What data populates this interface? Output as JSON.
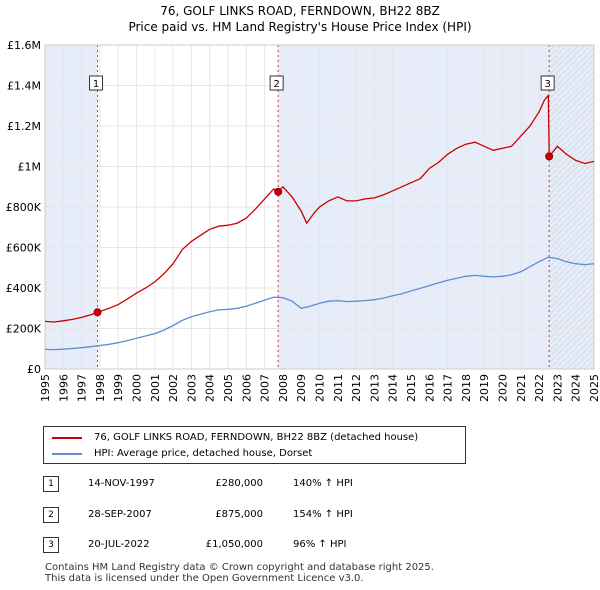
{
  "chart_data": {
    "type": "line",
    "title": "76, GOLF LINKS ROAD, FERNDOWN, BH22 8BZ",
    "subtitle": "Price paid vs. HM Land Registry's House Price Index (HPI)",
    "xlim": [
      1995,
      2025
    ],
    "ylim": [
      0,
      1600000
    ],
    "y_ticks": [
      0,
      200000,
      400000,
      600000,
      800000,
      1000000,
      1200000,
      1400000,
      1600000
    ],
    "y_tick_labels": [
      "£0",
      "£200K",
      "£400K",
      "£600K",
      "£800K",
      "£1M",
      "£1.2M",
      "£1.4M",
      "£1.6M"
    ],
    "x_ticks": [
      1995,
      1996,
      1997,
      1998,
      1999,
      2000,
      2001,
      2002,
      2003,
      2004,
      2005,
      2006,
      2007,
      2008,
      2009,
      2010,
      2011,
      2012,
      2013,
      2014,
      2015,
      2016,
      2017,
      2018,
      2019,
      2020,
      2021,
      2022,
      2023,
      2024,
      2025
    ],
    "x_tick_labels": [
      "1995",
      "1996",
      "1997",
      "1998",
      "1999",
      "2000",
      "2001",
      "2002",
      "2003",
      "2004",
      "2005",
      "2006",
      "2007",
      "2008",
      "2009",
      "2010",
      "2011",
      "2012",
      "2013",
      "2014",
      "2015",
      "2016",
      "2017",
      "2018",
      "2019",
      "2020",
      "2021",
      "2022",
      "2023",
      "2024",
      "2025"
    ],
    "grid": true,
    "series": [
      {
        "name": "76, GOLF LINKS ROAD, FERNDOWN, BH22 8BZ (detached house)",
        "color": "#cc0000",
        "x": [
          1995.0,
          1995.5,
          1996.0,
          1996.5,
          1997.0,
          1997.5,
          1997.87,
          1998.5,
          1999.0,
          1999.5,
          2000.0,
          2000.5,
          2001.0,
          2001.5,
          2002.0,
          2002.5,
          2003.0,
          2003.5,
          2004.0,
          2004.5,
          2005.0,
          2005.5,
          2006.0,
          2006.5,
          2007.0,
          2007.5,
          2007.74,
          2008.0,
          2008.5,
          2009.0,
          2009.3,
          2009.7,
          2010.0,
          2010.5,
          2011.0,
          2011.5,
          2012.0,
          2012.5,
          2013.0,
          2013.5,
          2014.0,
          2014.5,
          2015.0,
          2015.5,
          2016.0,
          2016.5,
          2017.0,
          2017.5,
          2018.0,
          2018.5,
          2019.0,
          2019.5,
          2020.0,
          2020.5,
          2021.0,
          2021.5,
          2022.0,
          2022.3,
          2022.5,
          2022.55,
          2023.0,
          2023.5,
          2024.0,
          2024.5,
          2025.0
        ],
        "values": [
          235000,
          232000,
          238000,
          245000,
          255000,
          268000,
          280000,
          300000,
          318000,
          345000,
          375000,
          400000,
          430000,
          470000,
          520000,
          590000,
          630000,
          660000,
          690000,
          705000,
          710000,
          720000,
          745000,
          790000,
          840000,
          890000,
          875000,
          900000,
          850000,
          780000,
          720000,
          770000,
          800000,
          830000,
          850000,
          830000,
          830000,
          840000,
          845000,
          860000,
          880000,
          900000,
          920000,
          940000,
          990000,
          1020000,
          1060000,
          1090000,
          1110000,
          1120000,
          1100000,
          1080000,
          1090000,
          1100000,
          1150000,
          1200000,
          1270000,
          1330000,
          1350000,
          1050000,
          1100000,
          1060000,
          1030000,
          1015000,
          1025000
        ]
      },
      {
        "name": "HPI: Average price, detached house, Dorset",
        "color": "#5b8fd1",
        "x": [
          1995.0,
          1995.5,
          1996.0,
          1996.5,
          1997.0,
          1997.5,
          1998.0,
          1998.5,
          1999.0,
          1999.5,
          2000.0,
          2000.5,
          2001.0,
          2001.5,
          2002.0,
          2002.5,
          2003.0,
          2003.5,
          2004.0,
          2004.5,
          2005.0,
          2005.5,
          2006.0,
          2006.5,
          2007.0,
          2007.5,
          2008.0,
          2008.5,
          2009.0,
          2009.5,
          2010.0,
          2010.5,
          2011.0,
          2011.5,
          2012.0,
          2012.5,
          2013.0,
          2013.5,
          2014.0,
          2014.5,
          2015.0,
          2015.5,
          2016.0,
          2016.5,
          2017.0,
          2017.5,
          2018.0,
          2018.5,
          2019.0,
          2019.5,
          2020.0,
          2020.5,
          2021.0,
          2021.5,
          2022.0,
          2022.5,
          2023.0,
          2023.5,
          2024.0,
          2024.5,
          2025.0
        ],
        "values": [
          97000,
          96000,
          98000,
          101000,
          105000,
          110000,
          116000,
          122000,
          130000,
          140000,
          152000,
          163000,
          175000,
          192000,
          215000,
          240000,
          258000,
          270000,
          283000,
          292000,
          295000,
          300000,
          310000,
          325000,
          340000,
          355000,
          352000,
          335000,
          300000,
          310000,
          325000,
          335000,
          338000,
          333000,
          335000,
          338000,
          342000,
          350000,
          362000,
          372000,
          385000,
          398000,
          412000,
          425000,
          438000,
          448000,
          458000,
          462000,
          458000,
          455000,
          458000,
          465000,
          480000,
          505000,
          530000,
          552000,
          545000,
          530000,
          520000,
          515000,
          520000
        ]
      }
    ],
    "sales": [
      {
        "label": "1",
        "x": 1997.87,
        "value": 280000
      },
      {
        "label": "2",
        "x": 2007.74,
        "value": 875000
      },
      {
        "label": "3",
        "x": 2022.55,
        "value": 1050000
      }
    ],
    "shaded_periods": [
      [
        1995,
        1997.87
      ],
      [
        2007.74,
        2022.55
      ],
      [
        2022.55,
        2025
      ]
    ]
  },
  "legend": {
    "items": [
      {
        "label": "76, GOLF LINKS ROAD, FERNDOWN, BH22 8BZ (detached house)",
        "color": "#cc0000"
      },
      {
        "label": "HPI: Average price, detached house, Dorset",
        "color": "#5b8fd1"
      }
    ]
  },
  "sales_table": [
    {
      "num": "1",
      "date": "14-NOV-1997",
      "price": "£280,000",
      "hpi": "140% ↑ HPI"
    },
    {
      "num": "2",
      "date": "28-SEP-2007",
      "price": "£875,000",
      "hpi": "154% ↑ HPI"
    },
    {
      "num": "3",
      "date": "20-JUL-2022",
      "price": "£1,050,000",
      "hpi": "96% ↑ HPI"
    }
  ],
  "footer": {
    "line1": "Contains HM Land Registry data © Crown copyright and database right 2025.",
    "line2": "This data is licensed under the Open Government Licence v3.0."
  }
}
